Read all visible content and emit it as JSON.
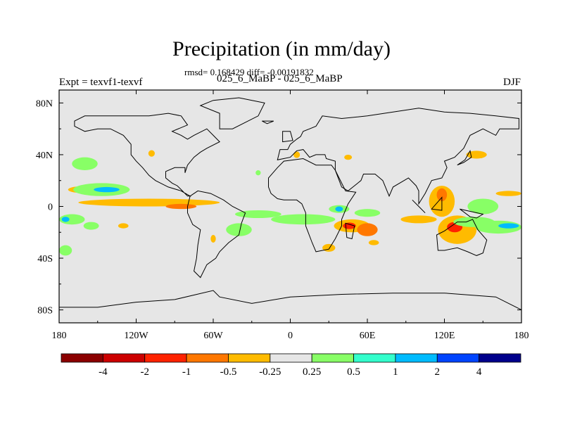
{
  "chart_data": {
    "type": "heatmap",
    "title": "Precipitation (in mm/day)",
    "stats_line": "rmsd= 0.168429 diff= -0.00191832",
    "experiment_label": "Expt = texvf1-texvf",
    "comparison_label": "025_6_MaBP - 025_6_MaBP",
    "season": "DJF",
    "x_ticks": [
      "180",
      "120W",
      "60W",
      "0",
      "60E",
      "120E",
      "180"
    ],
    "y_ticks": [
      "80N",
      "40N",
      "0",
      "40S",
      "80S"
    ],
    "x_range": [
      -180,
      180
    ],
    "y_range": [
      -90,
      90
    ],
    "colorbar_levels": [
      "-4",
      "-2",
      "-1",
      "-0.5",
      "-0.25",
      "0.25",
      "0.5",
      "1",
      "2",
      "4"
    ],
    "colorbar_colors": [
      "#8b0000",
      "#cc0000",
      "#ff2200",
      "#ff7700",
      "#ffbb00",
      "#e6e6e6",
      "#88ff66",
      "#33ffcc",
      "#00bbff",
      "#0044ff",
      "#00008b"
    ],
    "anomalies": [
      {
        "lon": -163,
        "lat": 13,
        "rx": 10,
        "ry": 2.5,
        "value": -0.3
      },
      {
        "lon": -147,
        "lat": 13,
        "rx": 22,
        "ry": 5,
        "value": 0.4
      },
      {
        "lon": -143,
        "lat": 13,
        "rx": 10,
        "ry": 2,
        "value": 1.2
      },
      {
        "lon": -110,
        "lat": 3,
        "rx": 55,
        "ry": 3,
        "value": -0.3
      },
      {
        "lon": -85,
        "lat": 0,
        "rx": 12,
        "ry": 2,
        "value": -0.6
      },
      {
        "lon": -108,
        "lat": 41,
        "rx": 2.5,
        "ry": 2.5,
        "value": -0.4
      },
      {
        "lon": -160,
        "lat": 33,
        "rx": 10,
        "ry": 5,
        "value": 0.3
      },
      {
        "lon": -170,
        "lat": -10,
        "rx": 10,
        "ry": 4,
        "value": 0.4
      },
      {
        "lon": -175,
        "lat": -10,
        "rx": 3,
        "ry": 2,
        "value": 1.0
      },
      {
        "lon": -155,
        "lat": -15,
        "rx": 6,
        "ry": 3,
        "value": 0.3
      },
      {
        "lon": -130,
        "lat": -15,
        "rx": 4,
        "ry": 2,
        "value": -0.3
      },
      {
        "lon": -175,
        "lat": -34,
        "rx": 5,
        "ry": 4,
        "value": 0.3
      },
      {
        "lon": -25,
        "lat": -6,
        "rx": 18,
        "ry": 3,
        "value": 0.4
      },
      {
        "lon": -40,
        "lat": -18,
        "rx": 10,
        "ry": 5,
        "value": 0.4
      },
      {
        "lon": 10,
        "lat": -10,
        "rx": 25,
        "ry": 4,
        "value": 0.3
      },
      {
        "lon": 38,
        "lat": -2,
        "rx": 8,
        "ry": 3,
        "value": 0.4
      },
      {
        "lon": 38,
        "lat": -2,
        "rx": 3,
        "ry": 2,
        "value": 1.0
      },
      {
        "lon": 48,
        "lat": -15,
        "rx": 14,
        "ry": 5,
        "value": -0.4
      },
      {
        "lon": 46,
        "lat": -15,
        "rx": 5,
        "ry": 2.5,
        "value": -1.2
      },
      {
        "lon": 60,
        "lat": -18,
        "rx": 8,
        "ry": 5,
        "value": -0.6
      },
      {
        "lon": 65,
        "lat": -28,
        "rx": 4,
        "ry": 2,
        "value": -0.3
      },
      {
        "lon": 30,
        "lat": -32,
        "rx": 5,
        "ry": 3,
        "value": -0.3
      },
      {
        "lon": 45,
        "lat": 38,
        "rx": 3,
        "ry": 2,
        "value": -0.3
      },
      {
        "lon": 60,
        "lat": -5,
        "rx": 10,
        "ry": 3,
        "value": 0.3
      },
      {
        "lon": 100,
        "lat": -10,
        "rx": 14,
        "ry": 3,
        "value": -0.3
      },
      {
        "lon": 118,
        "lat": 4,
        "rx": 10,
        "ry": 12,
        "value": -0.4
      },
      {
        "lon": 118,
        "lat": 9,
        "rx": 4,
        "ry": 5,
        "value": -0.8
      },
      {
        "lon": 130,
        "lat": -18,
        "rx": 15,
        "ry": 11,
        "value": -0.4
      },
      {
        "lon": 128,
        "lat": -16,
        "rx": 6,
        "ry": 4,
        "value": -1.1
      },
      {
        "lon": 143,
        "lat": -12,
        "rx": 16,
        "ry": 4,
        "value": 0.4
      },
      {
        "lon": 162,
        "lat": -16,
        "rx": 18,
        "ry": 5,
        "value": 0.4
      },
      {
        "lon": 170,
        "lat": -15,
        "rx": 8,
        "ry": 2,
        "value": 1.1
      },
      {
        "lon": 150,
        "lat": 0,
        "rx": 12,
        "ry": 6,
        "value": 0.3
      },
      {
        "lon": 170,
        "lat": 10,
        "rx": 10,
        "ry": 2,
        "value": -0.3
      },
      {
        "lon": 145,
        "lat": 40,
        "rx": 8,
        "ry": 3,
        "value": -0.4
      },
      {
        "lon": 5,
        "lat": 40,
        "rx": 2.5,
        "ry": 2.5,
        "value": -0.4
      },
      {
        "lon": -25,
        "lat": 26,
        "rx": 2,
        "ry": 2,
        "value": 0.3
      },
      {
        "lon": -60,
        "lat": -25,
        "rx": 2,
        "ry": 3,
        "value": -0.3
      }
    ],
    "continents": [
      [
        [
          -168,
          66
        ],
        [
          -160,
          70
        ],
        [
          -140,
          70
        ],
        [
          -125,
          70
        ],
        [
          -110,
          70
        ],
        [
          -95,
          72
        ],
        [
          -85,
          70
        ],
        [
          -80,
          63
        ],
        [
          -92,
          58
        ],
        [
          -85,
          55
        ],
        [
          -80,
          52
        ],
        [
          -75,
          55
        ],
        [
          -65,
          60
        ],
        [
          -60,
          55
        ],
        [
          -55,
          50
        ],
        [
          -65,
          45
        ],
        [
          -70,
          42
        ],
        [
          -75,
          38
        ],
        [
          -80,
          32
        ],
        [
          -82,
          26
        ],
        [
          -82,
          30
        ],
        [
          -90,
          30
        ],
        [
          -97,
          27
        ],
        [
          -97,
          22
        ],
        [
          -92,
          18
        ],
        [
          -88,
          16
        ],
        [
          -84,
          12
        ],
        [
          -80,
          8
        ],
        [
          -78,
          8
        ],
        [
          -85,
          12
        ],
        [
          -95,
          15
        ],
        [
          -105,
          20
        ],
        [
          -110,
          24
        ],
        [
          -115,
          30
        ],
        [
          -120,
          35
        ],
        [
          -124,
          40
        ],
        [
          -124,
          48
        ],
        [
          -130,
          55
        ],
        [
          -140,
          60
        ],
        [
          -150,
          60
        ],
        [
          -160,
          58
        ],
        [
          -168,
          62
        ]
      ],
      [
        [
          -78,
          8
        ],
        [
          -72,
          12
        ],
        [
          -62,
          10
        ],
        [
          -52,
          5
        ],
        [
          -45,
          0
        ],
        [
          -35,
          -5
        ],
        [
          -38,
          -13
        ],
        [
          -40,
          -22
        ],
        [
          -48,
          -28
        ],
        [
          -55,
          -35
        ],
        [
          -58,
          -40
        ],
        [
          -65,
          -45
        ],
        [
          -70,
          -55
        ],
        [
          -75,
          -50
        ],
        [
          -73,
          -40
        ],
        [
          -72,
          -30
        ],
        [
          -70,
          -18
        ],
        [
          -76,
          -14
        ],
        [
          -80,
          -5
        ],
        [
          -80,
          0
        ]
      ],
      [
        [
          -10,
          36
        ],
        [
          -8,
          44
        ],
        [
          -2,
          44
        ],
        [
          0,
          48
        ],
        [
          5,
          52
        ],
        [
          8,
          54
        ],
        [
          10,
          58
        ],
        [
          15,
          60
        ],
        [
          20,
          62
        ],
        [
          25,
          70
        ],
        [
          40,
          68
        ],
        [
          60,
          70
        ],
        [
          80,
          73
        ],
        [
          100,
          76
        ],
        [
          120,
          73
        ],
        [
          140,
          72
        ],
        [
          160,
          70
        ],
        [
          178,
          68
        ],
        [
          178,
          60
        ],
        [
          163,
          60
        ],
        [
          160,
          55
        ],
        [
          150,
          60
        ],
        [
          140,
          55
        ],
        [
          135,
          45
        ],
        [
          128,
          38
        ],
        [
          120,
          35
        ],
        [
          122,
          30
        ],
        [
          118,
          22
        ],
        [
          110,
          20
        ],
        [
          105,
          10
        ],
        [
          100,
          2
        ],
        [
          100,
          12
        ],
        [
          98,
          16
        ],
        [
          92,
          22
        ],
        [
          80,
          15
        ],
        [
          77,
          8
        ],
        [
          72,
          20
        ],
        [
          66,
          25
        ],
        [
          57,
          25
        ],
        [
          55,
          20
        ],
        [
          45,
          12
        ],
        [
          40,
          15
        ],
        [
          35,
          28
        ],
        [
          35,
          35
        ],
        [
          28,
          37
        ],
        [
          27,
          40
        ],
        [
          20,
          40
        ],
        [
          15,
          38
        ],
        [
          10,
          44
        ],
        [
          5,
          43
        ],
        [
          0,
          38
        ]
      ],
      [
        [
          -17,
          15
        ],
        [
          -17,
          22
        ],
        [
          -10,
          30
        ],
        [
          -5,
          35
        ],
        [
          10,
          37
        ],
        [
          20,
          32
        ],
        [
          32,
          32
        ],
        [
          35,
          28
        ],
        [
          43,
          12
        ],
        [
          51,
          11
        ],
        [
          45,
          2
        ],
        [
          40,
          -10
        ],
        [
          40,
          -15
        ],
        [
          35,
          -25
        ],
        [
          30,
          -33
        ],
        [
          20,
          -35
        ],
        [
          17,
          -28
        ],
        [
          12,
          -15
        ],
        [
          12,
          -5
        ],
        [
          9,
          2
        ],
        [
          5,
          5
        ],
        [
          -5,
          5
        ],
        [
          -10,
          6
        ],
        [
          -15,
          10
        ]
      ],
      [
        [
          114,
          -22
        ],
        [
          120,
          -19
        ],
        [
          130,
          -12
        ],
        [
          137,
          -12
        ],
        [
          142,
          -10
        ],
        [
          146,
          -18
        ],
        [
          153,
          -26
        ],
        [
          150,
          -36
        ],
        [
          145,
          -38
        ],
        [
          138,
          -35
        ],
        [
          130,
          -32
        ],
        [
          120,
          -34
        ],
        [
          115,
          -34
        ]
      ],
      [
        [
          -55,
          60
        ],
        [
          -45,
          60
        ],
        [
          -25,
          70
        ],
        [
          -20,
          80
        ],
        [
          -40,
          84
        ],
        [
          -60,
          82
        ],
        [
          -70,
          78
        ],
        [
          -55,
          72
        ]
      ],
      [
        [
          -180,
          -78
        ],
        [
          -150,
          -78
        ],
        [
          -120,
          -74
        ],
        [
          -90,
          -72
        ],
        [
          -60,
          -65
        ],
        [
          -55,
          -70
        ],
        [
          -30,
          -75
        ],
        [
          0,
          -70
        ],
        [
          40,
          -68
        ],
        [
          80,
          -67
        ],
        [
          120,
          -67
        ],
        [
          160,
          -70
        ],
        [
          170,
          -75
        ],
        [
          180,
          -80
        ],
        [
          180,
          -90
        ],
        [
          -180,
          -90
        ]
      ],
      [
        [
          43,
          -13
        ],
        [
          50,
          -15
        ],
        [
          48,
          -25
        ],
        [
          44,
          -24
        ]
      ],
      [
        [
          -6,
          50
        ],
        [
          2,
          51
        ],
        [
          0,
          58
        ],
        [
          -6,
          58
        ]
      ],
      [
        [
          130,
          32
        ],
        [
          135,
          34
        ],
        [
          141,
          38
        ],
        [
          140,
          43
        ],
        [
          136,
          36
        ]
      ],
      [
        [
          95,
          5
        ],
        [
          105,
          -5
        ],
        [
          100,
          0
        ]
      ],
      [
        [
          110,
          -2
        ],
        [
          118,
          7
        ],
        [
          118,
          -3
        ]
      ],
      [
        [
          -18,
          64
        ],
        [
          -13,
          66
        ],
        [
          -22,
          66
        ]
      ],
      [
        [
          132,
          -2
        ],
        [
          150,
          -6
        ],
        [
          145,
          -9
        ],
        [
          140,
          -8
        ]
      ]
    ]
  }
}
